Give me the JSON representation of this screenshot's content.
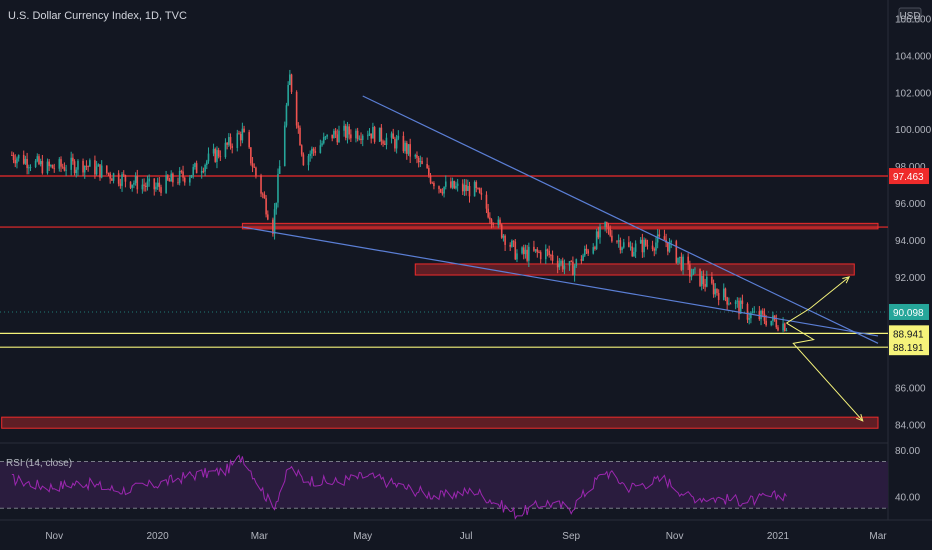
{
  "header": {
    "title": "U.S. Dollar Currency Index, 1D, TVC",
    "currency_button": "USD"
  },
  "colors": {
    "background": "#131722",
    "up": "#26A69A",
    "down": "#EF5350",
    "trendline": "#5B7FD6",
    "zone": "#EF2B2B",
    "support": "#F5F37A",
    "price_badge": "#26A69A",
    "rsi_line": "#9C27B0",
    "rsi_band": "#2A1C3E",
    "axis_text": "#B2B5BE"
  },
  "chart_data": [
    {
      "type": "line",
      "title": "U.S. Dollar Currency Index, 1D, TVC",
      "xlabel": "",
      "ylabel": "",
      "x": [
        "2019-10-07",
        "2019-10-28",
        "2019-11-18",
        "2019-12-09",
        "2019-12-30",
        "2020-01-20",
        "2020-02-10",
        "2020-02-20",
        "2020-03-09",
        "2020-03-19",
        "2020-03-27",
        "2020-04-13",
        "2020-05-04",
        "2020-05-25",
        "2020-06-15",
        "2020-07-06",
        "2020-07-31",
        "2020-08-17",
        "2020-09-01",
        "2020-09-21",
        "2020-10-05",
        "2020-10-26",
        "2020-11-09",
        "2020-11-30",
        "2020-12-14",
        "2021-01-06"
      ],
      "series": [
        {
          "values": [
            98.6,
            97.9,
            98.1,
            97.4,
            96.8,
            97.6,
            99.0,
            99.8,
            94.7,
            102.8,
            98.4,
            99.7,
            99.9,
            99.1,
            96.9,
            96.7,
            93.2,
            93.3,
            92.4,
            94.6,
            93.5,
            94.0,
            92.3,
            91.0,
            90.0,
            89.4
          ]
        }
      ],
      "x_ticks": [
        "Nov",
        "2020",
        "Mar",
        "May",
        "Jul",
        "Sep",
        "Nov",
        "2021",
        "Mar"
      ],
      "y_ticks": [
        "84.000",
        "86.000",
        "88.000",
        "92.000",
        "94.000",
        "96.000",
        "98.000",
        "100.000",
        "102.000",
        "104.000",
        "106.000"
      ],
      "ylim": [
        83.0,
        107.0
      ],
      "horizontal_lines": [
        {
          "value": 97.463,
          "label": "97.463",
          "style": "red"
        },
        {
          "value": 94.7,
          "style": "red-zone"
        },
        {
          "value": 88.941,
          "label": "88.941",
          "style": "yellow"
        },
        {
          "value": 88.191,
          "label": "88.191",
          "style": "yellow"
        }
      ],
      "zones": [
        {
          "x_start": "2020-02-20",
          "x_end": "2021-03-01",
          "y_low": 94.6,
          "y_high": 94.9
        },
        {
          "x_start": "2020-06-01",
          "x_end": "2021-02-15",
          "y_low": 92.1,
          "y_high": 92.7
        },
        {
          "x_start": "2019-10-01",
          "x_end": "2021-03-01",
          "y_low": 83.8,
          "y_high": 84.4
        }
      ],
      "trendlines": [
        {
          "from": [
            "2020-05-01",
            101.8
          ],
          "to": [
            "2021-03-01",
            88.4
          ]
        },
        {
          "from": [
            "2020-02-20",
            94.7
          ],
          "to": [
            "2021-03-01",
            88.8
          ]
        }
      ],
      "arrows": [
        {
          "path": [
            [
              "2021-01-06",
              89.5
            ],
            [
              "2021-01-20",
              90.3
            ],
            [
              "2021-02-12",
              92.0
            ]
          ]
        },
        {
          "path": [
            [
              "2021-01-06",
              89.5
            ],
            [
              "2021-01-22",
              88.6
            ],
            [
              "2021-01-10",
              88.4
            ],
            [
              "2021-02-20",
              84.2
            ]
          ]
        }
      ],
      "last_price": {
        "value": 90.098,
        "label": "90.098"
      },
      "grid": false
    },
    {
      "type": "line",
      "title": "RSI (14, close)",
      "series": [
        {
          "name": "RSI (14, close)",
          "values": [
            55,
            48,
            52,
            45,
            50,
            58,
            62,
            75,
            30,
            65,
            55,
            52,
            58,
            48,
            40,
            45,
            25,
            35,
            30,
            62,
            48,
            55,
            40,
            38,
            36,
            42
          ]
        }
      ],
      "y_ticks": [
        "40.00",
        "80.00"
      ],
      "ylim": [
        20,
        85
      ],
      "bands": [
        30,
        70
      ]
    }
  ]
}
